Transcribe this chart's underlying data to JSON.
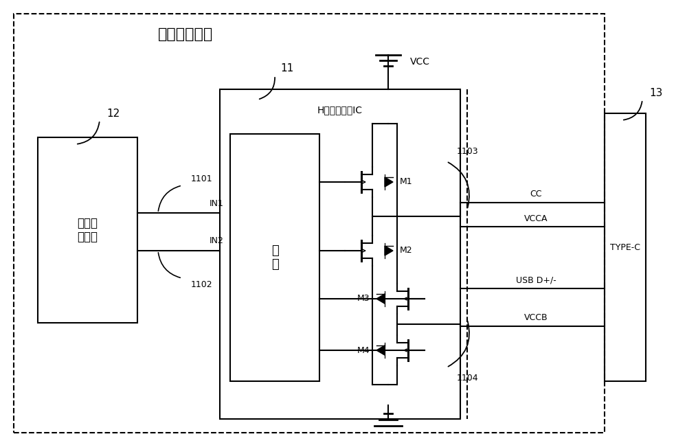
{
  "title": "接口适配电路",
  "label_motor": "电机控\n制电路",
  "label_driver": "驱\n动",
  "label_hbridge": "H桥电机驱动IC",
  "label_typec": "TYPE-C",
  "label_12": "12",
  "label_11": "11",
  "label_13": "13",
  "label_1101": "1101",
  "label_1102": "1102",
  "label_1103": "1103",
  "label_1104": "1104",
  "label_IN1": "IN1",
  "label_IN2": "IN2",
  "label_VCC": "VCC",
  "label_CC": "CC",
  "label_VCCA": "VCCA",
  "label_USBD": "USB D+/-",
  "label_VCCB": "VCCB",
  "label_M1": "M1",
  "label_M2": "M2",
  "label_M3": "M3",
  "label_M4": "M4",
  "bg": "#ffffff",
  "lc": "#000000"
}
